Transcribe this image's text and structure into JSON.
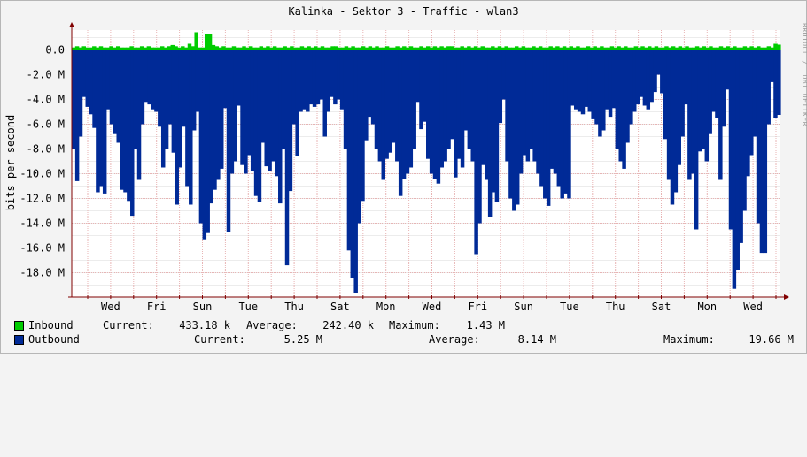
{
  "window": {
    "title": "Kalinka - Sektor 3 - Traffic - wlan3",
    "watermark": "RRDTOOL / TOBI OETIKER"
  },
  "colors": {
    "inbound": "#00cc00",
    "outbound": "#002a97",
    "background": "#f3f3f3",
    "plot_bg": "#ffffff",
    "grid": "#e8b4b4",
    "axis": "#800000"
  },
  "chart_data": {
    "type": "area",
    "ylabel": "bits per second",
    "ylim": [
      -19.7,
      1.5
    ],
    "y_ticks": [
      0,
      -2,
      -4,
      -6,
      -8,
      -10,
      -12,
      -14,
      -16,
      -18
    ],
    "y_tick_labels": [
      "0.0",
      "-2.0 M",
      "-4.0 M",
      "-6.0 M",
      "-8.0 M",
      "-10.0 M",
      "-12.0 M",
      "-14.0 M",
      "-16.0 M",
      "-18.0 M"
    ],
    "x_tick_labels": [
      "Wed",
      "Fri",
      "Sun",
      "Tue",
      "Thu",
      "Sat",
      "Mon",
      "Wed",
      "Fri",
      "Sun",
      "Tue",
      "Thu",
      "Sat",
      "Mon",
      "Wed"
    ],
    "series": [
      {
        "name": "Inbound",
        "values": [
          0.2,
          0.3,
          0.2,
          0.3,
          0.2,
          0.2,
          0.3,
          0.2,
          0.3,
          0.2,
          0.2,
          0.3,
          0.2,
          0.3,
          0.2,
          0.2,
          0.2,
          0.3,
          0.2,
          0.2,
          0.3,
          0.2,
          0.3,
          0.2,
          0.2,
          0.2,
          0.3,
          0.2,
          0.3,
          0.4,
          0.3,
          0.2,
          0.3,
          0.2,
          0.5,
          0.3,
          1.43,
          0.2,
          0.2,
          1.3,
          1.3,
          0.4,
          0.3,
          0.2,
          0.3,
          0.2,
          0.2,
          0.3,
          0.2,
          0.2,
          0.3,
          0.2,
          0.3,
          0.2,
          0.2,
          0.3,
          0.2,
          0.3,
          0.2,
          0.3,
          0.2,
          0.2,
          0.3,
          0.2,
          0.3,
          0.2,
          0.2,
          0.3,
          0.2,
          0.3,
          0.2,
          0.3,
          0.2,
          0.3,
          0.2,
          0.2,
          0.3,
          0.3,
          0.2,
          0.2,
          0.3,
          0.2,
          0.3,
          0.2,
          0.2,
          0.3,
          0.2,
          0.3,
          0.2,
          0.3,
          0.2,
          0.2,
          0.3,
          0.2,
          0.2,
          0.3,
          0.2,
          0.3,
          0.2,
          0.3,
          0.2,
          0.2,
          0.3,
          0.2,
          0.3,
          0.2,
          0.3,
          0.2,
          0.3,
          0.2,
          0.3,
          0.3,
          0.2,
          0.2,
          0.3,
          0.2,
          0.3,
          0.2,
          0.3,
          0.2,
          0.3,
          0.2,
          0.2,
          0.3,
          0.2,
          0.3,
          0.2,
          0.3,
          0.2,
          0.2,
          0.3,
          0.2,
          0.3,
          0.2,
          0.2,
          0.3,
          0.2,
          0.3,
          0.2,
          0.2,
          0.3,
          0.2,
          0.3,
          0.2,
          0.3,
          0.2,
          0.3,
          0.2,
          0.3,
          0.2,
          0.2,
          0.3,
          0.2,
          0.3,
          0.2,
          0.3,
          0.2,
          0.2,
          0.3,
          0.2,
          0.3,
          0.2,
          0.3,
          0.2,
          0.2,
          0.3,
          0.2,
          0.3,
          0.2,
          0.3,
          0.2,
          0.3,
          0.2,
          0.2,
          0.3,
          0.2,
          0.3,
          0.2,
          0.3,
          0.2,
          0.3,
          0.2,
          0.2,
          0.3,
          0.2,
          0.3,
          0.2,
          0.3,
          0.2,
          0.2,
          0.3,
          0.2,
          0.3,
          0.2,
          0.3,
          0.2,
          0.2,
          0.3,
          0.2,
          0.3,
          0.2,
          0.3,
          0.2,
          0.2,
          0.3,
          0.2,
          0.5,
          0.43
        ],
        "current": "433.18 k",
        "average": "242.40 k",
        "maximum": "1.43 M"
      },
      {
        "name": "Outbound",
        "values": [
          -8.0,
          -10.6,
          -7.0,
          -3.8,
          -4.6,
          -5.2,
          -6.3,
          -11.5,
          -11.0,
          -11.6,
          -4.8,
          -6.0,
          -6.8,
          -7.5,
          -11.3,
          -11.5,
          -12.2,
          -13.4,
          -8.0,
          -10.5,
          -6.0,
          -4.2,
          -4.4,
          -4.8,
          -5.0,
          -6.2,
          -9.5,
          -8.0,
          -6.0,
          -8.3,
          -12.5,
          -9.5,
          -6.2,
          -11.0,
          -12.5,
          -6.5,
          -5.0,
          -14.0,
          -15.3,
          -14.8,
          -12.4,
          -11.3,
          -10.5,
          -9.6,
          -4.7,
          -14.7,
          -10.0,
          -9.0,
          -4.5,
          -9.3,
          -10.0,
          -8.5,
          -9.8,
          -11.8,
          -12.3,
          -7.5,
          -9.4,
          -9.8,
          -9.0,
          -10.2,
          -12.4,
          -8.0,
          -17.4,
          -11.4,
          -6.0,
          -8.6,
          -5.0,
          -4.8,
          -5.0,
          -4.4,
          -4.6,
          -4.4,
          -4.0,
          -7.0,
          -5.0,
          -3.8,
          -4.4,
          -4.0,
          -4.8,
          -8.0,
          -16.2,
          -18.4,
          -19.66,
          -14.0,
          -12.2,
          -7.3,
          -5.4,
          -6.0,
          -8.0,
          -9.0,
          -10.5,
          -8.8,
          -8.3,
          -7.5,
          -9.0,
          -11.8,
          -10.4,
          -10.0,
          -9.5,
          -8.0,
          -4.2,
          -6.4,
          -5.8,
          -8.8,
          -10.0,
          -10.4,
          -10.8,
          -9.5,
          -9.0,
          -8.0,
          -7.2,
          -10.3,
          -8.8,
          -9.5,
          -6.5,
          -8.0,
          -9.0,
          -16.5,
          -14.0,
          -9.3,
          -10.5,
          -13.5,
          -11.5,
          -12.3,
          -5.9,
          -4.0,
          -9.0,
          -12.0,
          -13.0,
          -12.5,
          -10.0,
          -8.5,
          -9.0,
          -8.0,
          -9.0,
          -10.0,
          -11.0,
          -12.0,
          -12.6,
          -9.6,
          -10.0,
          -11.0,
          -12.0,
          -11.6,
          -12.0,
          -4.5,
          -4.8,
          -5.0,
          -5.2,
          -4.6,
          -5.0,
          -5.6,
          -6.0,
          -7.0,
          -6.5,
          -4.8,
          -5.4,
          -4.7,
          -8.0,
          -9.0,
          -9.6,
          -7.5,
          -6.0,
          -5.0,
          -4.4,
          -3.8,
          -4.5,
          -4.8,
          -4.2,
          -3.4,
          -2.0,
          -3.5,
          -7.2,
          -10.5,
          -12.5,
          -11.5,
          -9.3,
          -7.0,
          -4.4,
          -10.5,
          -10.0,
          -14.5,
          -8.2,
          -8.0,
          -9.0,
          -6.8,
          -5.0,
          -5.5,
          -10.5,
          -6.2,
          -3.2,
          -14.5,
          -19.3,
          -17.8,
          -15.6,
          -13.0,
          -10.2,
          -8.5,
          -7.0,
          -14.0,
          -16.4,
          -16.4,
          -6.0,
          -2.6,
          -5.5,
          -5.25
        ],
        "current": "5.25 M",
        "average": "8.14 M",
        "maximum": "19.66 M"
      }
    ]
  },
  "legend": {
    "current_label": "Current:",
    "average_label": "Average:",
    "maximum_label": "Maximum:"
  }
}
